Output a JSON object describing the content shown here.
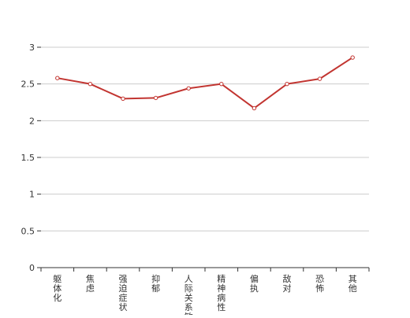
{
  "chart_data": {
    "type": "line",
    "title": "",
    "xlabel": "",
    "ylabel": "",
    "ylim": [
      0,
      3
    ],
    "yticks": [
      "0",
      "0.5",
      "1",
      "1.5",
      "2",
      "2.5",
      "3"
    ],
    "grid": true,
    "legend": "none",
    "categories": [
      "躯体化",
      "焦虑",
      "强迫症状",
      "抑郁",
      "人际关系敏感",
      "精神病性",
      "偏执",
      "敌对",
      "恐怖",
      "其他"
    ],
    "series": [
      {
        "values": [
          2.58,
          2.5,
          2.3,
          2.31,
          2.44,
          2.5,
          2.17,
          2.5,
          2.57,
          2.86
        ],
        "color": "#c23531"
      }
    ]
  },
  "colors": {
    "line": "#c23531",
    "grid": "#cccccc",
    "axis": "#333333",
    "label": "#333333"
  }
}
